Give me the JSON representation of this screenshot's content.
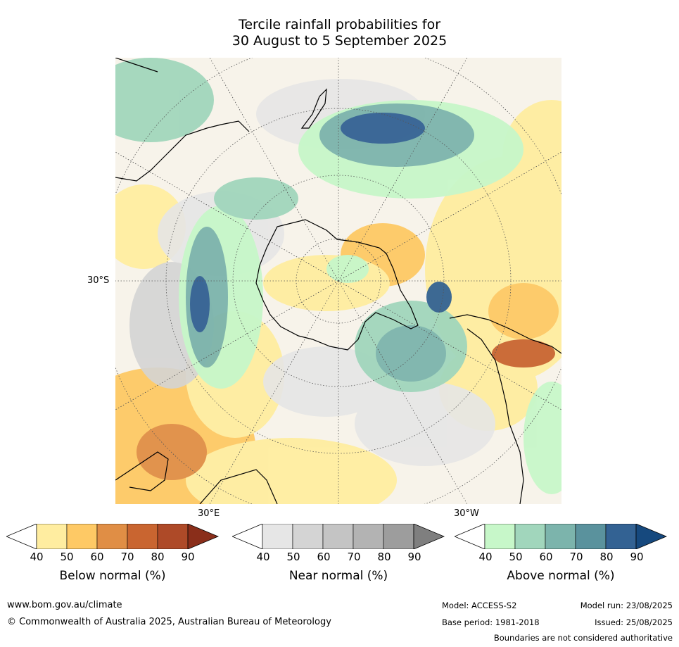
{
  "title": {
    "line1": "Tercile rainfall probabilities for",
    "line2": "30 August to 5 September 2025"
  },
  "map": {
    "projection": "south-polar-stereographic",
    "labels": {
      "lat": "30°S",
      "lon_east": "30°E",
      "lon_west": "30°W"
    },
    "colors": {
      "below": [
        "#ffeda0",
        "#fec965",
        "#e08e45",
        "#c96530",
        "#ae4a28",
        "#8a2e1a"
      ],
      "near": [
        "#e6e6e6",
        "#d4d4d4",
        "#c4c4c4",
        "#b3b3b3",
        "#9d9d9d",
        "#7f7f7f"
      ],
      "above": [
        "#c7f7c9",
        "#a1d6bc",
        "#7cb4ac",
        "#5a929d",
        "#336293",
        "#16497e"
      ]
    }
  },
  "colorbars": [
    {
      "id": "below",
      "label": "Below normal (%)",
      "ticks": [
        "40",
        "50",
        "60",
        "70",
        "80",
        "90"
      ]
    },
    {
      "id": "near",
      "label": "Near normal (%)",
      "ticks": [
        "40",
        "50",
        "60",
        "70",
        "80",
        "90"
      ]
    },
    {
      "id": "above",
      "label": "Above normal (%)",
      "ticks": [
        "40",
        "50",
        "60",
        "70",
        "80",
        "90"
      ]
    }
  ],
  "footer": {
    "url": "www.bom.gov.au/climate",
    "copyright": "© Commonwealth of Australia 2025, Australian Bureau of Meteorology",
    "model": "Model: ACCESS-S2",
    "model_run": "Model run: 23/08/2025",
    "base_period": "Base period: 1981-2018",
    "issued": "Issued: 25/08/2025",
    "disclaimer": "Boundaries are not considered authoritative"
  }
}
